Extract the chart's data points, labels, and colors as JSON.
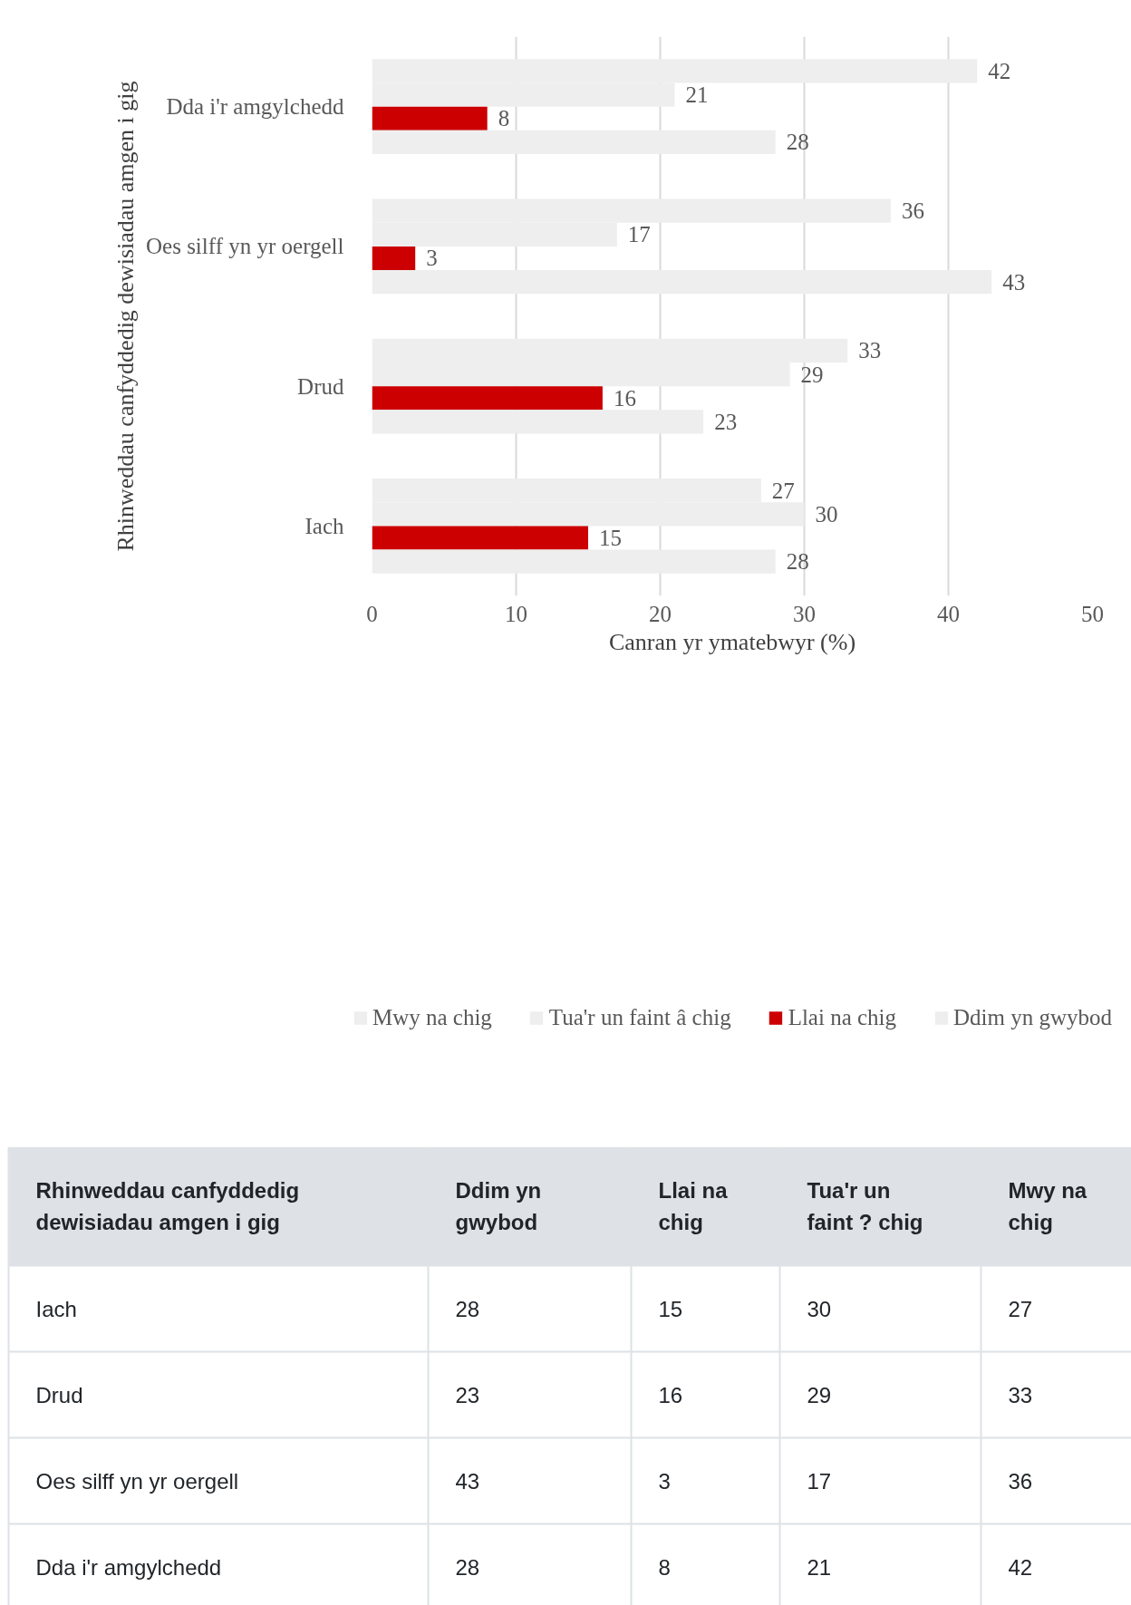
{
  "chart_data": {
    "type": "bar",
    "orientation": "horizontal",
    "categories": [
      "Dda i'r amgylchedd",
      "Oes silff yn yr oergell",
      "Drud",
      "Iach"
    ],
    "series": [
      {
        "name": "Mwy na chig",
        "color": "#eeeeee",
        "values": [
          42,
          36,
          33,
          27
        ]
      },
      {
        "name": "Tua'r un faint â chig",
        "color": "#eeeeee",
        "values": [
          21,
          17,
          29,
          30
        ]
      },
      {
        "name": "Llai na chig",
        "color": "#cc0000",
        "values": [
          8,
          3,
          16,
          15
        ]
      },
      {
        "name": "Ddim yn gwybod",
        "color": "#eeeeee",
        "values": [
          28,
          43,
          23,
          28
        ]
      }
    ],
    "xlim": [
      0,
      50
    ],
    "xticks": [
      0,
      10,
      20,
      30,
      40,
      50
    ],
    "xlabel": "Canran yr ymatebwyr (%)",
    "ylabel": "Rhinweddau canfyddedig dewisiadau amgen i gig",
    "grid": "x",
    "legend": "bottom",
    "data_labels": true,
    "annotations": [
      "Rhinweddau canfyddedig dewisiadau amgen i gig",
      "Ddim yn gwybod",
      "Llai na chig",
      "Tua'r un faint ? chig",
      "Mwy na chig",
      "28",
      "15",
      "30",
      "27",
      "23",
      "16",
      "29",
      "33",
      "43",
      "3",
      "17",
      "36",
      "28",
      "8",
      "21",
      "42"
    ]
  }
}
